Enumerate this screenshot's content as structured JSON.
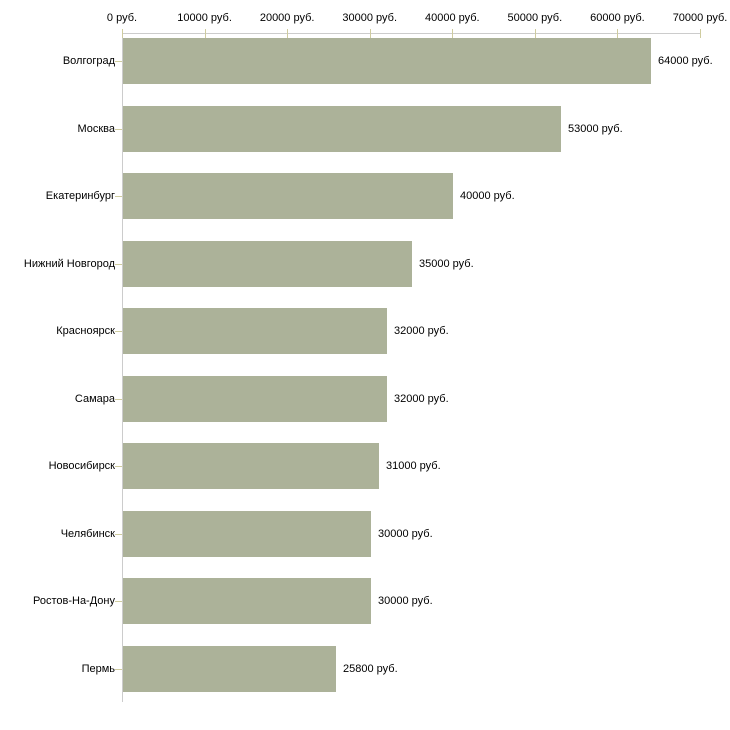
{
  "chart_data": {
    "type": "bar",
    "orientation": "horizontal",
    "categories": [
      "Волгоград",
      "Москва",
      "Екатеринбург",
      "Нижний Новгород",
      "Красноярск",
      "Самара",
      "Новосибирск",
      "Челябинск",
      "Ростов-На-Дону",
      "Пермь"
    ],
    "values": [
      64000,
      53000,
      40000,
      35000,
      32000,
      32000,
      31000,
      30000,
      30000,
      25800
    ],
    "value_labels": [
      "64000 руб.",
      "53000 руб.",
      "40000 руб.",
      "35000 руб.",
      "32000 руб.",
      "32000 руб.",
      "31000 руб.",
      "30000 руб.",
      "30000 руб.",
      "25800 руб."
    ],
    "x_axis": {
      "position": "top",
      "min": 0,
      "max": 70000,
      "ticks": [
        0,
        10000,
        20000,
        30000,
        40000,
        50000,
        60000,
        70000
      ],
      "tick_labels": [
        "0 руб.",
        "10000 руб.",
        "20000 руб.",
        "30000 руб.",
        "40000 руб.",
        "50000 руб.",
        "60000 руб.",
        "70000 руб."
      ]
    },
    "grid": false,
    "legend": false,
    "colors": {
      "bar": "#acb299",
      "axis_line": "#cccccc",
      "tick_mark": "#cfcc9f",
      "text": "#000000",
      "background": "#ffffff"
    }
  }
}
